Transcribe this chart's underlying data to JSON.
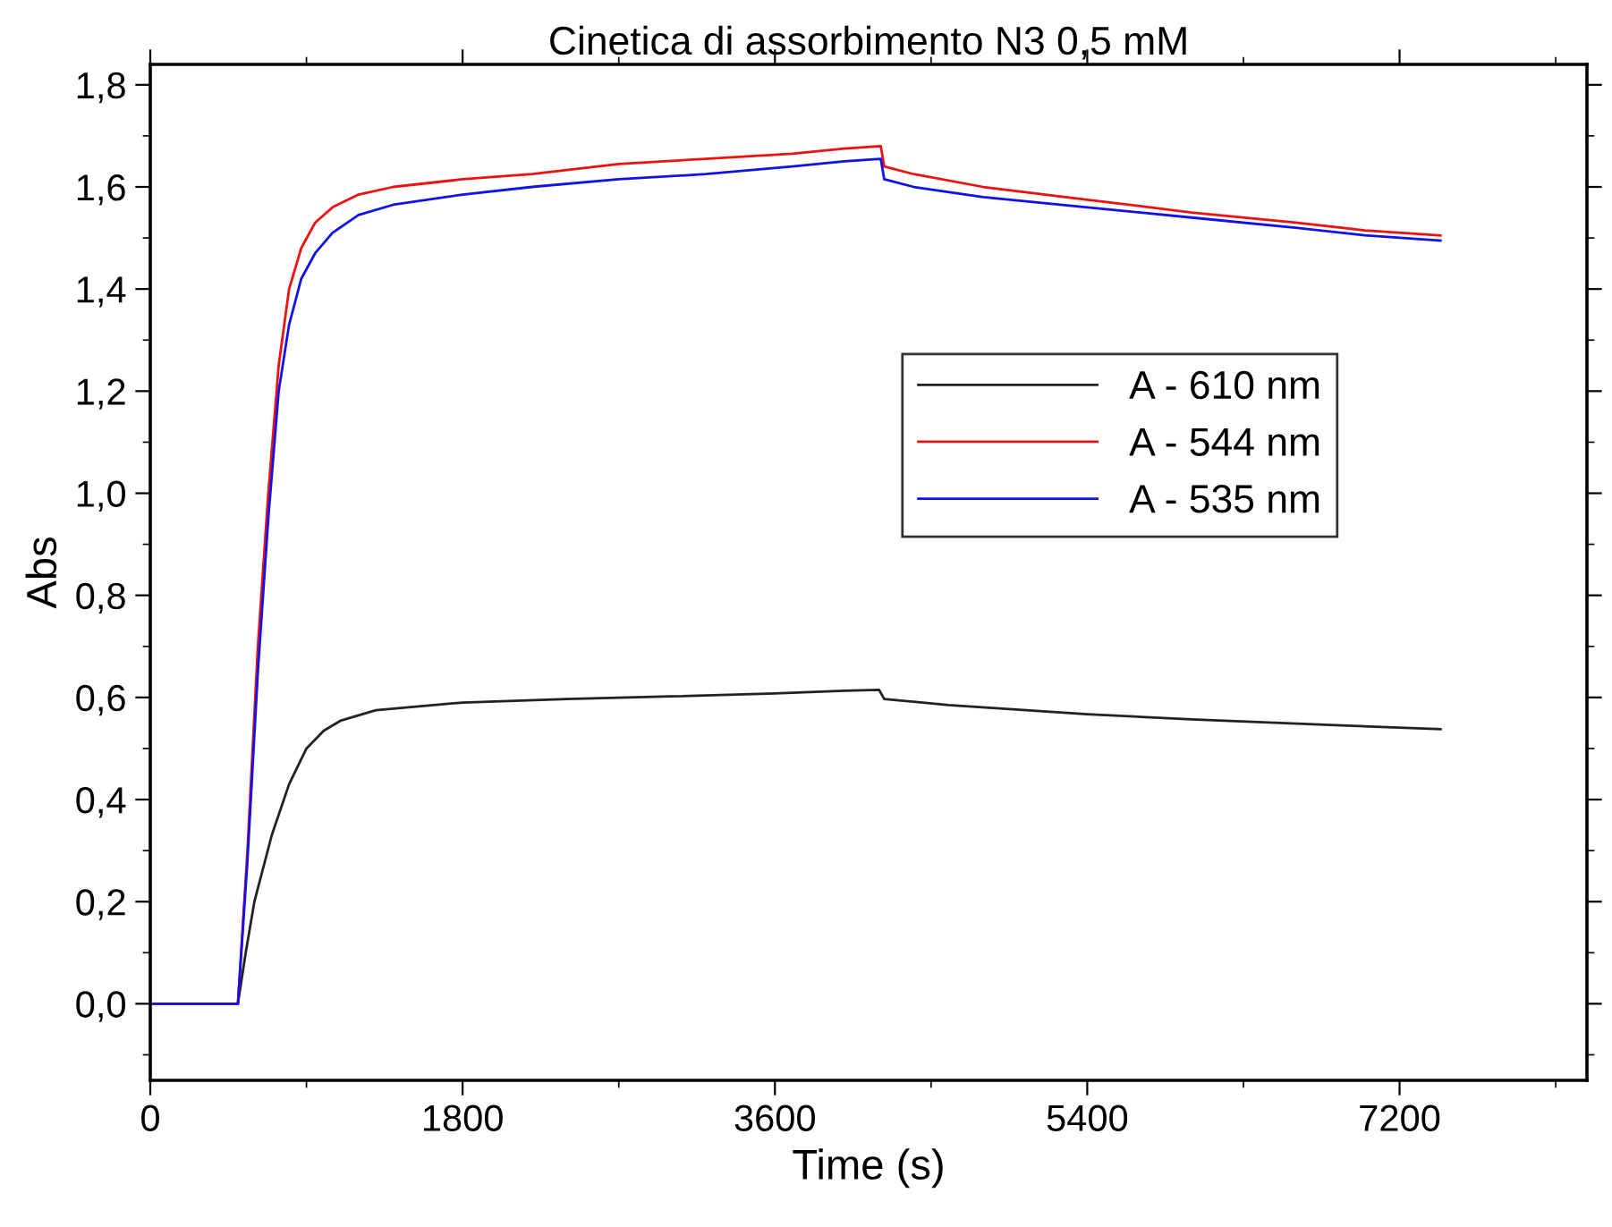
{
  "chart_data": {
    "type": "line",
    "title": "Cinetica di assorbimento N3 0,5 mM",
    "xlabel": "Time (s)",
    "ylabel": "Abs",
    "xlim": [
      0,
      8280
    ],
    "xticks": [
      0,
      1800,
      3600,
      5400,
      7200
    ],
    "ylim": [
      -0.15,
      1.84
    ],
    "yticks": [
      {
        "value": 0,
        "label": "0,0"
      },
      {
        "value": 0.2,
        "label": "0,2"
      },
      {
        "value": 0.4,
        "label": "0,4"
      },
      {
        "value": 0.6,
        "label": "0,6"
      },
      {
        "value": 0.8,
        "label": "0,8"
      },
      {
        "value": 1.0,
        "label": "1,0"
      },
      {
        "value": 1.2,
        "label": "1,2"
      },
      {
        "value": 1.4,
        "label": "1,4"
      },
      {
        "value": 1.6,
        "label": "1,6"
      },
      {
        "value": 1.8,
        "label": "1,8"
      }
    ],
    "grid": false,
    "legend": "center right",
    "marker": "none",
    "line_style": "solid",
    "series": [
      {
        "name": "A - 610 nm",
        "color": "#222222",
        "x": [
          0,
          400,
          505,
          550,
          600,
          700,
          800,
          900,
          1000,
          1100,
          1300,
          1800,
          2400,
          3000,
          3600,
          4000,
          4200,
          4230,
          4600,
          5400,
          6000,
          6800,
          7436
        ],
        "values": [
          0,
          0,
          0,
          0.1,
          0.2,
          0.33,
          0.43,
          0.5,
          0.535,
          0.555,
          0.575,
          0.59,
          0.597,
          0.602,
          0.608,
          0.613,
          0.615,
          0.597,
          0.585,
          0.567,
          0.557,
          0.546,
          0.538
        ]
      },
      {
        "name": "A - 544 nm",
        "color": "#ee1111",
        "x": [
          0,
          400,
          505,
          560,
          620,
          680,
          740,
          800,
          870,
          950,
          1050,
          1200,
          1400,
          1800,
          2200,
          2700,
          3200,
          3700,
          4000,
          4210,
          4230,
          4400,
          4800,
          5400,
          6000,
          6600,
          7000,
          7436
        ],
        "values": [
          0,
          0,
          0,
          0.3,
          0.7,
          1.0,
          1.25,
          1.4,
          1.48,
          1.53,
          1.56,
          1.585,
          1.6,
          1.615,
          1.625,
          1.645,
          1.655,
          1.665,
          1.675,
          1.68,
          1.64,
          1.625,
          1.6,
          1.575,
          1.55,
          1.53,
          1.515,
          1.505
        ]
      },
      {
        "name": "A - 535 nm",
        "color": "#1111ee",
        "x": [
          0,
          400,
          505,
          560,
          620,
          680,
          740,
          800,
          870,
          950,
          1050,
          1200,
          1400,
          1800,
          2200,
          2700,
          3200,
          3700,
          4000,
          4210,
          4230,
          4400,
          4800,
          5400,
          6000,
          6600,
          7000,
          7436
        ],
        "values": [
          0,
          0,
          0,
          0.28,
          0.65,
          0.95,
          1.2,
          1.33,
          1.42,
          1.47,
          1.51,
          1.545,
          1.565,
          1.585,
          1.6,
          1.615,
          1.625,
          1.64,
          1.65,
          1.655,
          1.615,
          1.6,
          1.58,
          1.56,
          1.54,
          1.52,
          1.505,
          1.495
        ]
      }
    ]
  }
}
